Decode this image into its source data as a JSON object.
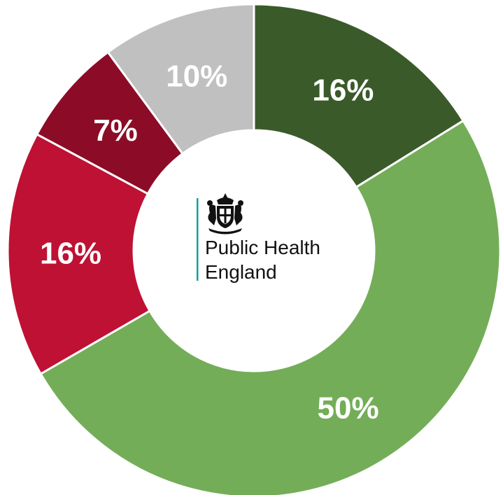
{
  "chart_data": {
    "type": "pie",
    "donut": true,
    "title": "",
    "categories": [
      "",
      "",
      "",
      "",
      ""
    ],
    "values": [
      16,
      50,
      16,
      7,
      10
    ],
    "labels": [
      "16%",
      "50%",
      "16%",
      "7%",
      "10%"
    ],
    "colors": [
      "#3b5a2a",
      "#74ad58",
      "#be1134",
      "#8c0c27",
      "#c0c0c0"
    ],
    "start": "12 o'clock",
    "direction": "clockwise",
    "legend": "none"
  },
  "center_logo": {
    "org_name_line1": "Public Health",
    "org_name_line2": "England",
    "rule_color": "#0ea39b",
    "crest_icon": "royal-coat-of-arms-icon"
  }
}
